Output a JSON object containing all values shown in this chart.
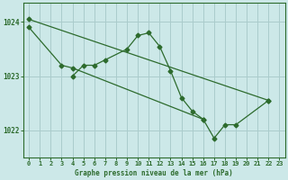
{
  "bg_color": "#cce8e8",
  "grid_color": "#aacccc",
  "line_color": "#2d6b2d",
  "title": "Graphe pression niveau de la mer (hPa)",
  "ylim": [
    1021.5,
    1024.35
  ],
  "yticks": [
    1022,
    1023,
    1024
  ],
  "line1_x": [
    0,
    3,
    4,
    16,
    17,
    18,
    19,
    22
  ],
  "line1_y": [
    1023.9,
    1023.2,
    1023.15,
    1022.2,
    1021.85,
    1022.1,
    1022.1,
    1022.55
  ],
  "line2_x": [
    4,
    5,
    6,
    7,
    9,
    10,
    11,
    12,
    13,
    14,
    15,
    16
  ],
  "line2_y": [
    1023.0,
    1023.2,
    1023.2,
    1023.3,
    1023.5,
    1023.75,
    1023.8,
    1023.55,
    1023.1,
    1022.6,
    1022.35,
    1022.2
  ],
  "line3_x": [
    0,
    22
  ],
  "line3_y": [
    1024.05,
    1022.55
  ],
  "xlim": [
    -0.5,
    23.5
  ],
  "tick_fontsize": 5.0,
  "label_fontsize": 5.5
}
